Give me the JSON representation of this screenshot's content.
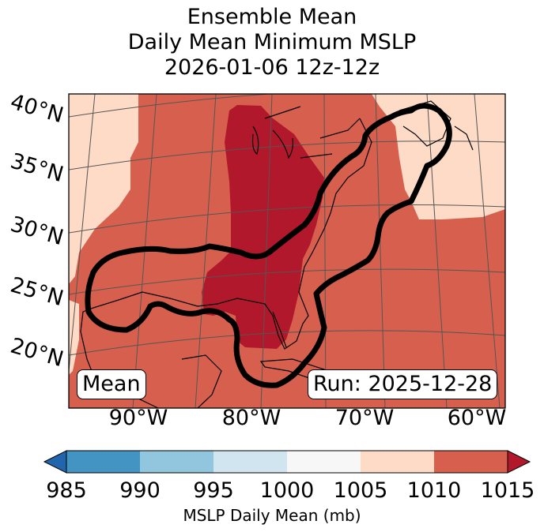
{
  "title": {
    "line1": "Ensemble Mean",
    "line2": "Daily Mean Minimum MSLP",
    "line3": "2026-01-06 12z-12z"
  },
  "lat_labels": [
    "40°N",
    "35°N",
    "30°N",
    "25°N",
    "20°N"
  ],
  "lon_labels": [
    "90°W",
    "80°W",
    "70°W",
    "60°W"
  ],
  "badges": {
    "left": "Mean",
    "right": "Run: 2025-12-28"
  },
  "colorbar": {
    "ticks": [
      "985",
      "990",
      "995",
      "1000",
      "1005",
      "1010",
      "1015"
    ],
    "label": "MSLP Daily Mean (mb)",
    "colors": [
      "#2166ac",
      "#4393c3",
      "#92c5de",
      "#d1e5f0",
      "#f7f7f7",
      "#fddbc7",
      "#d6604d",
      "#b2182b"
    ]
  },
  "legend_colors": {
    "lt_1005_1010": "#fddbc7",
    "lt_1010_1015": "#d6604d",
    "gt_1015": "#b2182b",
    "contour": "#000000"
  }
}
